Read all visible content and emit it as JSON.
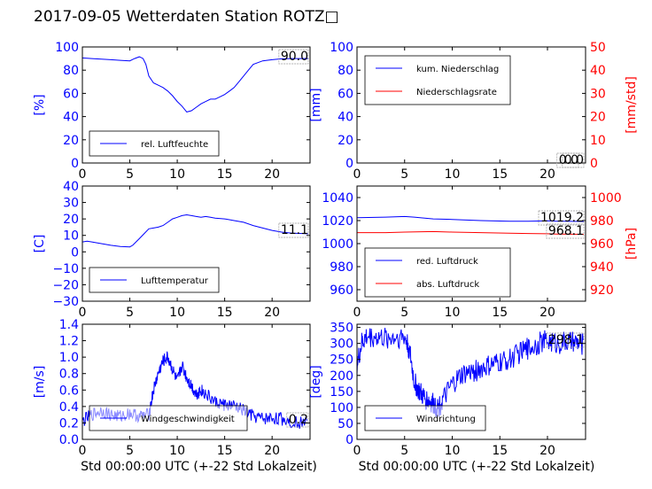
{
  "page_title": "2017-09-05 Wetterdaten Station ROTZ□",
  "colors": {
    "blue": "#0000ff",
    "red": "#ff0000",
    "black": "#000000"
  },
  "chart_data": [
    {
      "id": "humidity",
      "type": "line",
      "ylabel": "[%]",
      "xlim": [
        0,
        24
      ],
      "ylim": [
        0,
        100
      ],
      "xticks": [
        "0",
        "5",
        "10",
        "15",
        "20"
      ],
      "yticks": [
        "0",
        "20",
        "40",
        "60",
        "80",
        "100"
      ],
      "grid": false,
      "legend": "bottom-left",
      "current_value": "90.0",
      "series": [
        {
          "name": "rel. Luftfeuchte",
          "color": "#0000ff",
          "x": [
            0,
            1,
            2,
            3,
            4,
            5,
            5.5,
            6,
            6.4,
            6.7,
            7,
            7.5,
            8,
            8.5,
            9,
            9.5,
            10,
            10.5,
            11,
            11.5,
            12,
            12.5,
            13,
            13.5,
            14,
            14.5,
            15,
            15.5,
            16,
            16.5,
            17,
            17.5,
            18,
            19,
            20,
            21,
            22,
            23.8
          ],
          "y": [
            90.5,
            90,
            89.5,
            89,
            88.5,
            88,
            90,
            91.5,
            90,
            85,
            75,
            69,
            67,
            65,
            62,
            58,
            53,
            49,
            44,
            45,
            48,
            51,
            53,
            55,
            55,
            57,
            59,
            62,
            65,
            70,
            75,
            80,
            85,
            88,
            89,
            89.8,
            90,
            90
          ]
        }
      ]
    },
    {
      "id": "precip",
      "type": "line",
      "ylabel": "[mm]",
      "ylabel_right": "[mm/std]",
      "xlim": [
        0,
        24
      ],
      "ylim": [
        0,
        100
      ],
      "ylim_right": [
        0,
        50
      ],
      "xticks": [
        "0",
        "5",
        "10",
        "15",
        "20"
      ],
      "yticks": [
        "0",
        "20",
        "40",
        "60",
        "80",
        "100"
      ],
      "yticks_right": [
        "0",
        "10",
        "20",
        "30",
        "40",
        "50"
      ],
      "grid": false,
      "legend": "top-left",
      "current_value": "0.0",
      "current_value_right": "0.0",
      "series": [
        {
          "name": "kum. Niederschlag",
          "color": "#0000ff",
          "x": [
            0,
            24
          ],
          "y": [
            0,
            0
          ]
        },
        {
          "name": "Niederschlagsrate",
          "color": "#ff0000",
          "axis": "right",
          "x": [
            0,
            24
          ],
          "y": [
            0,
            0
          ]
        }
      ]
    },
    {
      "id": "temperature",
      "type": "line",
      "ylabel": "[C]",
      "xlim": [
        0,
        24
      ],
      "ylim": [
        -30,
        40
      ],
      "xticks": [
        "0",
        "5",
        "10",
        "15",
        "20"
      ],
      "yticks": [
        "−30",
        "−20",
        "−10",
        "0",
        "10",
        "20",
        "30",
        "40"
      ],
      "grid": false,
      "legend": "bottom-left",
      "current_value": "11.1",
      "series": [
        {
          "name": "Lufttemperatur",
          "color": "#0000ff",
          "x": [
            0,
            0.5,
            1,
            2,
            3,
            4,
            5,
            5.3,
            6,
            6.5,
            7,
            7.5,
            8,
            8.5,
            9,
            9.5,
            10,
            10.5,
            11,
            11.5,
            12,
            12.5,
            13,
            13.5,
            14,
            15,
            16,
            17,
            18,
            19,
            20,
            21,
            22,
            23.8
          ],
          "y": [
            6,
            6.5,
            6,
            5,
            4,
            3.2,
            3,
            4,
            8,
            11,
            14,
            14.5,
            15,
            16,
            18,
            20,
            21,
            22,
            22.5,
            22,
            21.5,
            21,
            21.5,
            21,
            20.5,
            20,
            19,
            18,
            16,
            14.5,
            13,
            12,
            11.4,
            11
          ]
        }
      ]
    },
    {
      "id": "pressure",
      "type": "line",
      "ylabel_right": "[hPa]",
      "xlim": [
        0,
        24
      ],
      "ylim": [
        950,
        1050
      ],
      "ylim_right": [
        910,
        1010
      ],
      "xticks": [
        "0",
        "5",
        "10",
        "15",
        "20"
      ],
      "yticks": [
        "960",
        "980",
        "1000",
        "1020",
        "1040"
      ],
      "yticks_right": [
        "920",
        "940",
        "960",
        "980",
        "1000"
      ],
      "grid": false,
      "legend": "bottom-left",
      "current_value": "1019.2",
      "current_value_right": "968.1",
      "series": [
        {
          "name": "red. Luftdruck",
          "color": "#0000ff",
          "x": [
            0,
            3,
            5,
            6,
            8,
            10,
            13,
            16,
            18,
            20,
            21,
            23.8
          ],
          "y": [
            1022.5,
            1023,
            1023.5,
            1023,
            1021.5,
            1021,
            1020,
            1019.5,
            1019.5,
            1019.8,
            1019.5,
            1019.2
          ]
        },
        {
          "name": "abs. Luftdruck",
          "color": "#ff0000",
          "axis": "right",
          "x": [
            0,
            3,
            5,
            8,
            10,
            13,
            16,
            18,
            20,
            21,
            23.8
          ],
          "y": [
            969.5,
            969.5,
            970,
            970.5,
            970,
            969.5,
            969,
            968.8,
            968.5,
            968.3,
            968.1
          ]
        }
      ]
    },
    {
      "id": "wind_speed",
      "type": "line",
      "ylabel": "[m/s]",
      "xlabel": "Std 00:00:00 UTC (+-22 Std Lokalzeit)",
      "xlim": [
        0,
        24
      ],
      "ylim": [
        0,
        1.4
      ],
      "xticks": [
        "0",
        "5",
        "10",
        "15",
        "20"
      ],
      "yticks": [
        "0.0",
        "0.2",
        "0.4",
        "0.6",
        "0.8",
        "1.0",
        "1.2",
        "1.4"
      ],
      "grid": false,
      "legend": "bottom-left",
      "current_value": "0.2",
      "series": [
        {
          "name": "Windgeschwindigkeit",
          "color": "#0000ff",
          "noise": 0.08,
          "x": [
            0,
            1,
            2,
            3,
            4,
            5,
            6,
            7,
            7.5,
            8,
            8.5,
            9,
            9.5,
            10,
            10.5,
            11,
            11.5,
            12,
            12.5,
            13,
            14,
            15,
            16,
            17,
            18,
            19,
            20,
            21,
            22,
            23.8
          ],
          "y": [
            0.22,
            0.3,
            0.35,
            0.3,
            0.28,
            0.32,
            0.28,
            0.3,
            0.6,
            0.8,
            0.95,
            1.0,
            0.85,
            0.7,
            0.9,
            0.75,
            0.65,
            0.55,
            0.6,
            0.55,
            0.45,
            0.42,
            0.4,
            0.35,
            0.28,
            0.25,
            0.26,
            0.25,
            0.22,
            0.2
          ]
        }
      ]
    },
    {
      "id": "wind_dir",
      "type": "line",
      "ylabel": "[deg]",
      "xlabel": "Std 00:00:00 UTC (+-22 Std Lokalzeit)",
      "xlim": [
        0,
        24
      ],
      "ylim": [
        0,
        360
      ],
      "xticks": [
        "0",
        "5",
        "10",
        "15",
        "20"
      ],
      "yticks": [
        "0",
        "50",
        "100",
        "150",
        "200",
        "250",
        "300",
        "350"
      ],
      "grid": false,
      "legend": "bottom-left",
      "current_value": "298.1",
      "series": [
        {
          "name": "Windrichtung",
          "color": "#0000ff",
          "noise": 35,
          "x": [
            0,
            0.5,
            1,
            2,
            3,
            4,
            5,
            5.5,
            6,
            6.5,
            7,
            7.5,
            8,
            8.5,
            9,
            10,
            11,
            12,
            13,
            14,
            15,
            16,
            17,
            18,
            19,
            20,
            21,
            22,
            23,
            23.8
          ],
          "y": [
            230,
            300,
            320,
            320,
            315,
            320,
            320,
            280,
            180,
            150,
            130,
            120,
            110,
            100,
            120,
            170,
            200,
            210,
            220,
            230,
            240,
            250,
            270,
            285,
            300,
            310,
            300,
            305,
            300,
            298
          ]
        }
      ]
    }
  ]
}
